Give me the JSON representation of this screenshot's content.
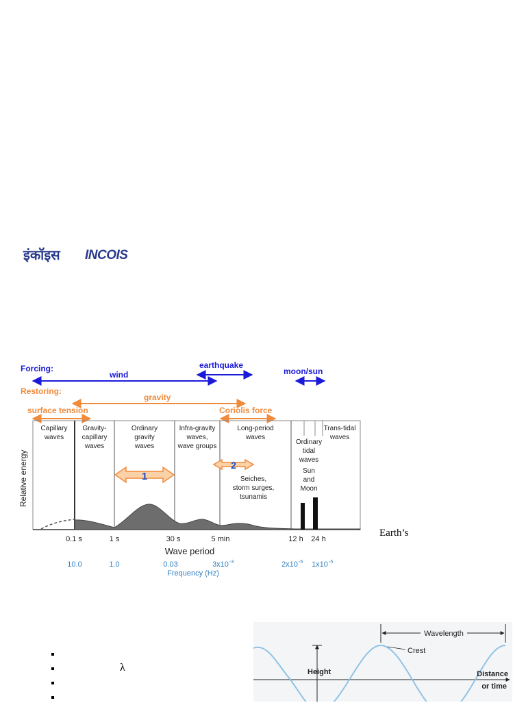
{
  "logo": {
    "hindi": "इंकॉइस",
    "english": "INCOIS"
  },
  "spectrum": {
    "forcing_label": "Forcing:",
    "restoring_label": "Restoring:",
    "forcing": {
      "wind": "wind",
      "earthquake": "earthquake",
      "moon_sun": "moon/sun"
    },
    "restoring": {
      "gravity": "gravity",
      "surface_tension": "surface tension",
      "coriolis": "Coriolis force"
    },
    "bands": {
      "capillary": [
        "Capillary",
        "waves"
      ],
      "gravity_capillary": [
        "Gravity-",
        "capillary",
        "waves"
      ],
      "ordinary_gravity": [
        "Ordinary",
        "gravity",
        "waves"
      ],
      "infra_gravity": [
        "Infra-gravity",
        "waves,",
        "wave groups"
      ],
      "long_period": [
        "Long-period",
        "waves"
      ],
      "ordinary_tidal": [
        "Ordinary",
        "tidal",
        "waves"
      ],
      "trans_tidal": [
        "Trans-tidal",
        "waves"
      ]
    },
    "seiches": [
      "Seiches,",
      "storm surges,",
      "tsunamis"
    ],
    "sun_moon": [
      "Sun",
      "and",
      "Moon"
    ],
    "marker_1": "1",
    "marker_2": "2",
    "y_label": "Relative energy",
    "x_label": "Wave period",
    "period_ticks": [
      "0.1 s",
      "1 s",
      "30 s",
      "5 min",
      "12 h",
      "24 h"
    ],
    "freq_ticks": [
      "10.0",
      "1.0",
      "0.03",
      "3x10",
      "2x10",
      "1x10"
    ],
    "freq_exponents": [
      "-3",
      "-5",
      "-5"
    ],
    "freq_label": "Frequency  (Hz)",
    "colors": {
      "forcing": "#1a1adb",
      "restoring": "#f08a3c",
      "freq": "#2f7fc1",
      "fill": "#6d6d6d",
      "marker_fill": "#fbd2a8",
      "marker_text": "#1f4fc4"
    }
  },
  "earth_text": "Earth’s",
  "bullets": {
    "lambda": "λ"
  },
  "wave": {
    "wavelength": "Wavelength",
    "crest": "Crest",
    "height": "Height",
    "distance": "Distance",
    "or_time": "or time",
    "colors": {
      "curve": "#8ec3e6",
      "axis": "#222222"
    }
  }
}
